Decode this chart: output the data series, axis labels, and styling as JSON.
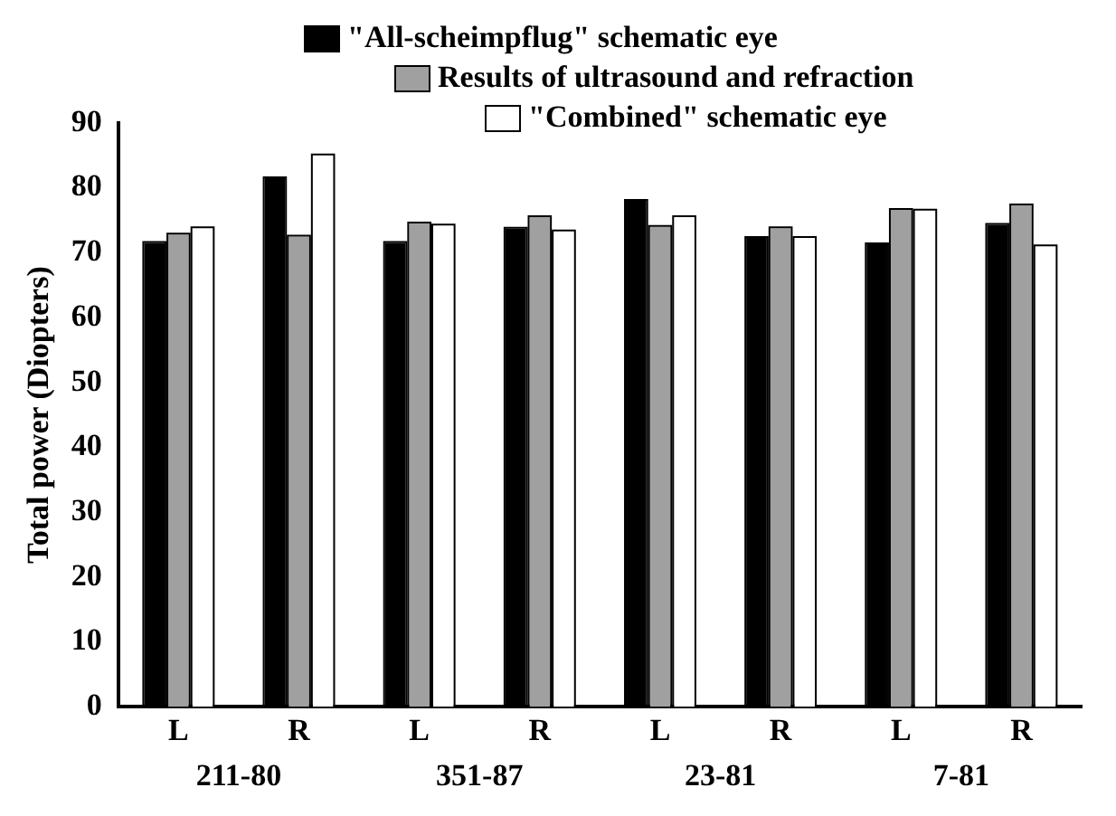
{
  "chart_data": {
    "type": "bar",
    "ylabel": "Total power (Diopters)",
    "categories": [
      "L",
      "R",
      "L",
      "R",
      "L",
      "R",
      "L",
      "R"
    ],
    "series": [
      {
        "name": "\"All-scheimpflug\" schematic eye",
        "color": "#000000",
        "values": [
          71.5,
          81.5,
          71.5,
          73.7,
          78,
          72.3,
          71.3,
          74.3
        ]
      },
      {
        "name": "Results of ultrasound and refraction",
        "color": "#a0a0a0",
        "values": [
          72.8,
          72.5,
          74.5,
          75.5,
          74,
          73.8,
          76.6,
          77.3
        ]
      },
      {
        "name": "\"Combined\" schematic eye",
        "color": "#ffffff",
        "values": [
          73.8,
          85,
          74.2,
          73.3,
          75.5,
          72.3,
          76.5,
          71
        ]
      }
    ],
    "annotations": [
      "211-80",
      "351-87",
      "23-81",
      "7-81"
    ],
    "ylim": [
      0,
      90
    ],
    "yticks": [
      0,
      10,
      20,
      30,
      40,
      50,
      60,
      70,
      80,
      90
    ],
    "grid": false,
    "legend": "top right"
  }
}
